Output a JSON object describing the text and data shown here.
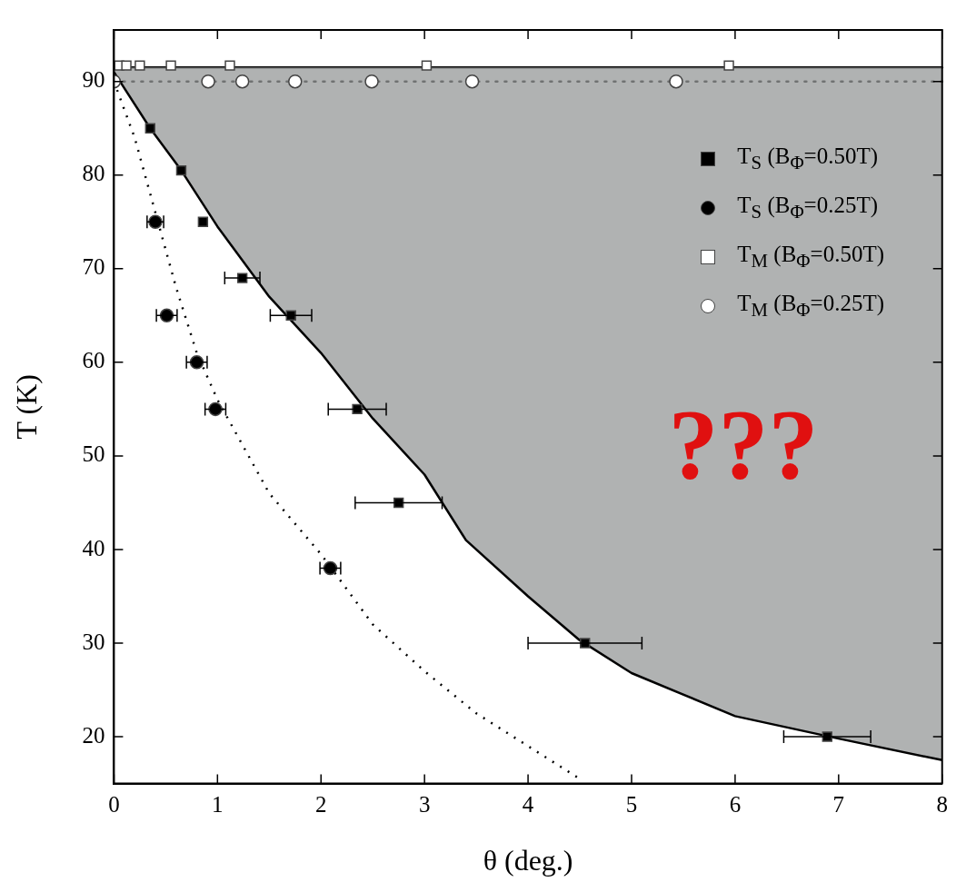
{
  "chart_data": {
    "type": "scatter",
    "xlabel": "θ (deg.)",
    "ylabel": "T (K)",
    "xlim": [
      0,
      8
    ],
    "ylim": [
      15,
      95.5
    ],
    "xticks": [
      0,
      1,
      2,
      3,
      4,
      5,
      6,
      7,
      8
    ],
    "yticks": [
      20,
      30,
      40,
      50,
      60,
      70,
      80,
      90
    ],
    "legend": "top right",
    "annotations": [
      "???"
    ],
    "ref_lines": [
      {
        "axis": "y",
        "value": 90,
        "color": "#000000",
        "line_style": "dotted"
      },
      {
        "axis": "y",
        "value": 91.5,
        "color": "#000000",
        "line_style": "solid"
      }
    ],
    "series": [
      {
        "type": "line",
        "color": "#000000",
        "line_style": "solid",
        "marker": "none",
        "x": [
          0,
          0.35,
          0.65,
          1,
          1.5,
          2,
          2.5,
          3,
          3.4,
          4,
          4.5,
          5,
          6,
          7,
          8
        ],
        "values": [
          91,
          85,
          80.5,
          74.5,
          67,
          61,
          54,
          48,
          41,
          35,
          30.3,
          26.8,
          22.2,
          19.8,
          17.5
        ],
        "lower": [
          91,
          85,
          80.5,
          74.5,
          67,
          61,
          54,
          48,
          41,
          35,
          30.3,
          26.8,
          22.2,
          19.8,
          17.5
        ],
        "upper": [
          91.5,
          91.5,
          91.5,
          91.5,
          91.5,
          91.5,
          91.5,
          91.5,
          91.5,
          91.5,
          91.5,
          91.5,
          91.5,
          91.5,
          91.5
        ]
      },
      {
        "type": "line",
        "color": "#000000",
        "line_style": "dotted",
        "marker": "none",
        "x": [
          0,
          0.2,
          0.4,
          0.6,
          0.8,
          1,
          1.5,
          2,
          2.5,
          3,
          3.5,
          4,
          4.5
        ],
        "values": [
          90,
          84,
          76,
          68,
          61,
          56,
          46,
          39.5,
          32,
          27,
          22.5,
          19,
          15.5
        ]
      },
      {
        "name": "T$_{S}$ (B$_{Φ}$=0.50T)",
        "color": "#000000",
        "marker": "square",
        "x": [
          0.35,
          0.65,
          0.86,
          1.24,
          1.71,
          2.35,
          2.75,
          4.55,
          6.89
        ],
        "values": [
          85,
          80.5,
          75,
          69,
          65,
          55,
          45,
          30,
          20
        ],
        "xerrors": [
          null,
          null,
          null,
          0.17,
          0.2,
          0.28,
          0.42,
          0.55,
          0.42
        ]
      },
      {
        "name": "T$_{S}$ (B$_{Φ}$=0.25T)",
        "color": "#000000",
        "marker": "circle",
        "x": [
          0.4,
          0.51,
          0.8,
          0.98,
          2.09
        ],
        "values": [
          75,
          65,
          60,
          55,
          38
        ],
        "xerrors": [
          0.08,
          0.1,
          0.1,
          0.1,
          0.1
        ]
      },
      {
        "name": "T$_{M}$ (B$_{Φ}$=0.50T)",
        "color": "#ffffff",
        "marker": "square",
        "x": [
          0.05,
          0.12,
          0.25,
          0.55,
          1.12,
          3.02,
          5.94
        ],
        "values": [
          91.7,
          91.7,
          91.7,
          91.7,
          91.7,
          91.7,
          91.7
        ]
      },
      {
        "name": "T$_{M}$ (B$_{Φ}$=0.25T)",
        "color": "#ffffff",
        "marker": "circle",
        "x": [
          0,
          0.91,
          1.24,
          1.75,
          2.49,
          3.46,
          5.43
        ],
        "values": [
          90,
          90,
          90,
          90,
          90,
          90,
          90
        ]
      }
    ]
  }
}
